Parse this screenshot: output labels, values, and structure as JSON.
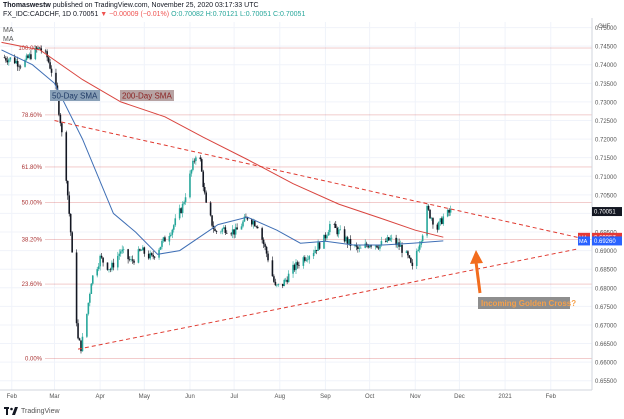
{
  "header": {
    "author": "Thomaswestw",
    "published": "published on TradingView.com, November 25, 2020 03:17:33 UTC",
    "symbol": "FX_IDC:CADCHF, 1D",
    "last": "0.70051",
    "change": "▼ −0.00009 (−0.01%)",
    "ohlc": "O:0.70082 H:0.70121 L:0.70051 C:0.70051"
  },
  "indicators": [
    "MA",
    "MA"
  ],
  "footer": {
    "brand": "TradingView"
  },
  "annotations": {
    "sma50_label": "50-Day SMA",
    "sma200_label": "200-Day SMA",
    "golden_cross_label": "Incoming Golden Cross?"
  },
  "price_badges": {
    "last": "0.70051",
    "ma_200": "0.69357",
    "ma_50": "0.69260",
    "ma_tag": "MA"
  },
  "colors": {
    "up": "#26a69a",
    "down": "#131722",
    "sma50": "#3f6fb5",
    "sma200": "#d9453f",
    "trend": "#e0392f",
    "fib": "#cc3333",
    "arrow": "#f26c1d",
    "badge_blue": "#2962ff",
    "badge_red": "#e53935"
  },
  "chart_data": {
    "type": "candlestick",
    "currency": "CHF",
    "y_range": [
      0.6525,
      0.7515
    ],
    "y_ticks": [
      "0.75000",
      "0.74500",
      "0.74000",
      "0.73500",
      "0.73000",
      "0.72500",
      "0.72000",
      "0.71500",
      "0.71000",
      "0.70500",
      "0.70000",
      "0.69500",
      "0.69000",
      "0.68500",
      "0.68000",
      "0.67500",
      "0.67000",
      "0.66500",
      "0.66000",
      "0.65500"
    ],
    "x_ticks": [
      "Feb",
      "Mar",
      "Apr",
      "May",
      "Jun",
      "Jul",
      "Aug",
      "Sep",
      "Oct",
      "Nov",
      "Dec",
      "2021",
      "Feb"
    ],
    "fibonacci": [
      {
        "label": "100.00%",
        "price": 0.7445
      },
      {
        "label": "78.60%",
        "price": 0.7265
      },
      {
        "label": "61.80%",
        "price": 0.7125
      },
      {
        "label": "50.00%",
        "price": 0.703
      },
      {
        "label": "38.20%",
        "price": 0.693
      },
      {
        "label": "23.60%",
        "price": 0.681
      },
      {
        "label": "0.00%",
        "price": 0.661
      }
    ],
    "trendlines": [
      {
        "name": "upper",
        "from": {
          "date": "2020-03-01",
          "price": 0.725
        },
        "to": {
          "date": "2021-02-20",
          "price": 0.6935
        }
      },
      {
        "name": "lower",
        "from": {
          "date": "2020-03-17",
          "price": 0.6635
        },
        "to": {
          "date": "2021-02-20",
          "price": 0.6905
        }
      }
    ],
    "sma50": [
      {
        "date": "2020-01-25",
        "price": 0.744
      },
      {
        "date": "2020-02-15",
        "price": 0.74
      },
      {
        "date": "2020-03-01",
        "price": 0.735
      },
      {
        "date": "2020-03-20",
        "price": 0.72
      },
      {
        "date": "2020-04-10",
        "price": 0.7
      },
      {
        "date": "2020-04-25",
        "price": 0.695
      },
      {
        "date": "2020-05-10",
        "price": 0.689
      },
      {
        "date": "2020-05-25",
        "price": 0.69
      },
      {
        "date": "2020-06-20",
        "price": 0.697
      },
      {
        "date": "2020-07-10",
        "price": 0.699
      },
      {
        "date": "2020-07-30",
        "price": 0.6955
      },
      {
        "date": "2020-08-15",
        "price": 0.692
      },
      {
        "date": "2020-09-01",
        "price": 0.6925
      },
      {
        "date": "2020-09-20",
        "price": 0.6915
      },
      {
        "date": "2020-10-10",
        "price": 0.6915
      },
      {
        "date": "2020-10-30",
        "price": 0.692
      },
      {
        "date": "2020-11-20",
        "price": 0.6926
      }
    ],
    "sma200": [
      {
        "date": "2020-01-25",
        "price": 0.746
      },
      {
        "date": "2020-02-20",
        "price": 0.744
      },
      {
        "date": "2020-03-20",
        "price": 0.736
      },
      {
        "date": "2020-04-15",
        "price": 0.73
      },
      {
        "date": "2020-05-15",
        "price": 0.726
      },
      {
        "date": "2020-06-10",
        "price": 0.7205
      },
      {
        "date": "2020-07-10",
        "price": 0.7145
      },
      {
        "date": "2020-08-10",
        "price": 0.708
      },
      {
        "date": "2020-09-10",
        "price": 0.7025
      },
      {
        "date": "2020-10-10",
        "price": 0.6985
      },
      {
        "date": "2020-11-01",
        "price": 0.6955
      },
      {
        "date": "2020-11-20",
        "price": 0.6936
      }
    ],
    "close_path": [
      {
        "date": "2020-01-25",
        "price": 0.742
      },
      {
        "date": "2020-02-01",
        "price": 0.7415
      },
      {
        "date": "2020-02-08",
        "price": 0.74
      },
      {
        "date": "2020-02-15",
        "price": 0.743
      },
      {
        "date": "2020-02-20",
        "price": 0.7445
      },
      {
        "date": "2020-02-25",
        "price": 0.742
      },
      {
        "date": "2020-03-01",
        "price": 0.736
      },
      {
        "date": "2020-03-05",
        "price": 0.725
      },
      {
        "date": "2020-03-09",
        "price": 0.71
      },
      {
        "date": "2020-03-12",
        "price": 0.695
      },
      {
        "date": "2020-03-14",
        "price": 0.682
      },
      {
        "date": "2020-03-17",
        "price": 0.666
      },
      {
        "date": "2020-03-19",
        "price": 0.664
      },
      {
        "date": "2020-03-22",
        "price": 0.67
      },
      {
        "date": "2020-03-26",
        "price": 0.682
      },
      {
        "date": "2020-04-01",
        "price": 0.688
      },
      {
        "date": "2020-04-08",
        "price": 0.685
      },
      {
        "date": "2020-04-15",
        "price": 0.69
      },
      {
        "date": "2020-04-22",
        "price": 0.687
      },
      {
        "date": "2020-04-29",
        "price": 0.69
      },
      {
        "date": "2020-05-06",
        "price": 0.688
      },
      {
        "date": "2020-05-13",
        "price": 0.692
      },
      {
        "date": "2020-05-20",
        "price": 0.696
      },
      {
        "date": "2020-05-27",
        "price": 0.702
      },
      {
        "date": "2020-06-01",
        "price": 0.71
      },
      {
        "date": "2020-06-05",
        "price": 0.716
      },
      {
        "date": "2020-06-08",
        "price": 0.714
      },
      {
        "date": "2020-06-12",
        "price": 0.702
      },
      {
        "date": "2020-06-18",
        "price": 0.695
      },
      {
        "date": "2020-06-25",
        "price": 0.696
      },
      {
        "date": "2020-07-02",
        "price": 0.695
      },
      {
        "date": "2020-07-10",
        "price": 0.699
      },
      {
        "date": "2020-07-17",
        "price": 0.697
      },
      {
        "date": "2020-07-24",
        "price": 0.688
      },
      {
        "date": "2020-07-29",
        "price": 0.68
      },
      {
        "date": "2020-08-03",
        "price": 0.681
      },
      {
        "date": "2020-08-10",
        "price": 0.685
      },
      {
        "date": "2020-08-17",
        "price": 0.688
      },
      {
        "date": "2020-08-24",
        "price": 0.69
      },
      {
        "date": "2020-08-31",
        "price": 0.693
      },
      {
        "date": "2020-09-04",
        "price": 0.697
      },
      {
        "date": "2020-09-10",
        "price": 0.695
      },
      {
        "date": "2020-09-17",
        "price": 0.692
      },
      {
        "date": "2020-09-24",
        "price": 0.69
      },
      {
        "date": "2020-10-01",
        "price": 0.692
      },
      {
        "date": "2020-10-08",
        "price": 0.6915
      },
      {
        "date": "2020-10-15",
        "price": 0.693
      },
      {
        "date": "2020-10-22",
        "price": 0.691
      },
      {
        "date": "2020-10-27",
        "price": 0.688
      },
      {
        "date": "2020-10-30",
        "price": 0.685
      },
      {
        "date": "2020-11-02",
        "price": 0.69
      },
      {
        "date": "2020-11-06",
        "price": 0.695
      },
      {
        "date": "2020-11-09",
        "price": 0.701
      },
      {
        "date": "2020-11-12",
        "price": 0.699
      },
      {
        "date": "2020-11-16",
        "price": 0.696
      },
      {
        "date": "2020-11-20",
        "price": 0.699
      },
      {
        "date": "2020-11-25",
        "price": 0.7005
      }
    ]
  }
}
